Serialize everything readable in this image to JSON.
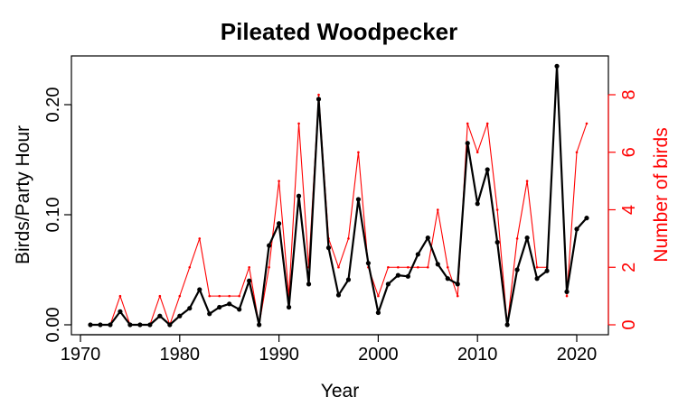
{
  "chart_data": {
    "type": "line",
    "title": "Pileated Woodpecker",
    "xlabel": "Year",
    "ylabel": "Birds/Party Hour",
    "ylabel_right": "Number of birds",
    "xlim": [
      1970,
      2022
    ],
    "ylim": [
      0,
      0.24
    ],
    "ylim_right": [
      0,
      9.2
    ],
    "x_ticks": [
      "1970",
      "1980",
      "1990",
      "2000",
      "2010",
      "2020"
    ],
    "y_ticks": [
      "0.00",
      "0.10",
      "0.20"
    ],
    "y_ticks_right": [
      "0",
      "2",
      "4",
      "6",
      "8"
    ],
    "x": [
      1971,
      1972,
      1973,
      1974,
      1975,
      1976,
      1977,
      1978,
      1979,
      1980,
      1981,
      1982,
      1983,
      1984,
      1985,
      1986,
      1987,
      1988,
      1989,
      1990,
      1991,
      1992,
      1993,
      1994,
      1995,
      1996,
      1997,
      1998,
      1999,
      2000,
      2001,
      2002,
      2003,
      2004,
      2005,
      2006,
      2007,
      2008,
      2009,
      2010,
      2011,
      2012,
      2013,
      2014,
      2015,
      2016,
      2017,
      2018,
      2019,
      2020,
      2021
    ],
    "series": [
      {
        "name": "Birds/Party Hour",
        "color": "#000000",
        "axis": "left",
        "values": [
          0,
          0,
          0,
          0.012,
          0,
          0,
          0,
          0.008,
          0,
          0.008,
          0.015,
          0.032,
          0.01,
          0.016,
          0.019,
          0.014,
          0.04,
          0,
          0.072,
          0.092,
          0.016,
          0.117,
          0.037,
          0.205,
          0.07,
          0.027,
          0.041,
          0.114,
          0.056,
          0.011,
          0.037,
          0.045,
          0.044,
          0.064,
          0.079,
          0.055,
          0.042,
          0.037,
          0.165,
          0.11,
          0.141,
          0.075,
          0,
          0.05,
          0.079,
          0.042,
          0.049,
          0.235,
          0.03,
          0.087,
          0.097
        ]
      },
      {
        "name": "Number of birds",
        "color": "#ff0000",
        "axis": "right",
        "values": [
          0,
          0,
          0,
          1,
          0,
          0,
          0,
          1,
          0,
          1,
          2,
          3,
          1,
          1,
          1,
          1,
          2,
          0,
          2,
          5,
          1,
          7,
          2,
          8,
          3,
          2,
          3,
          6,
          2,
          1,
          2,
          2,
          2,
          2,
          2,
          4,
          2,
          1,
          7,
          6,
          7,
          4,
          0,
          3,
          5,
          2,
          2,
          9,
          1,
          6,
          7
        ]
      }
    ]
  }
}
